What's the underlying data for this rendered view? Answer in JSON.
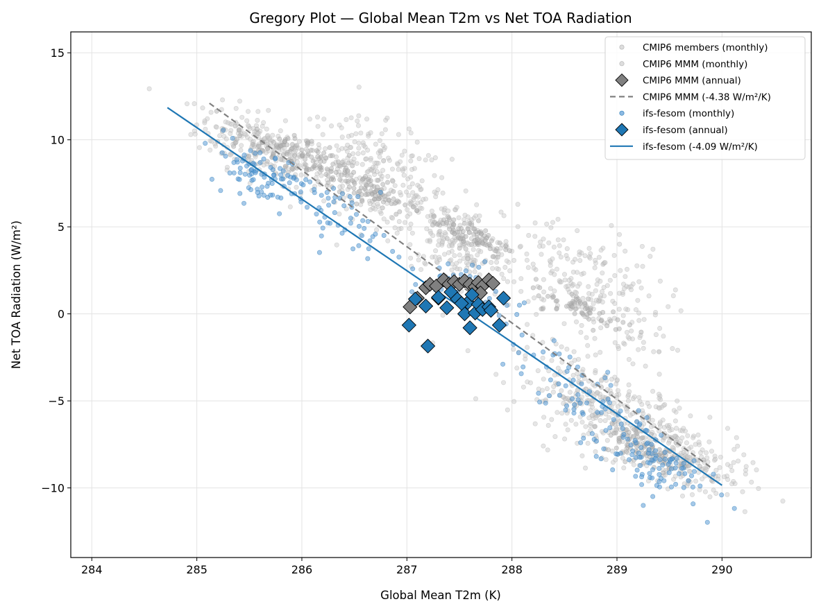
{
  "chart_data": {
    "type": "scatter",
    "title": "Gregory Plot — Global Mean T2m vs Net TOA Radiation",
    "xlabel": "Global Mean T2m (K)",
    "ylabel": "Net TOA Radiation (W/m²)",
    "xlim": [
      283.8,
      290.85
    ],
    "ylim": [
      -14.0,
      16.2
    ],
    "xticks": [
      284,
      285,
      286,
      287,
      288,
      289,
      290
    ],
    "xtick_labels": [
      "284",
      "285",
      "286",
      "287",
      "288",
      "289",
      "290"
    ],
    "yticks": [
      -10,
      -5,
      0,
      5,
      10,
      15
    ],
    "ytick_labels": [
      "−10",
      "−5",
      "0",
      "5",
      "10",
      "15"
    ],
    "grid": true,
    "legend_position": "top-right",
    "colors": {
      "cmip_gray": "#808080",
      "ifs_blue": "#1f77b4",
      "edge_black": "#000000"
    },
    "series": [
      {
        "name": "CMIP6 members (monthly)",
        "kind": "scatter-small",
        "color": "#c8c8c8",
        "clusters": [
          {
            "x_center": 285.6,
            "y_center": 9.6,
            "x_spread": 0.55,
            "y_spread": 1.6,
            "count": 230
          },
          {
            "x_center": 286.7,
            "y_center": 8.0,
            "x_spread": 0.65,
            "y_spread": 2.6,
            "count": 260
          },
          {
            "x_center": 287.5,
            "y_center": 4.0,
            "x_spread": 0.5,
            "y_spread": 2.0,
            "count": 220
          },
          {
            "x_center": 288.7,
            "y_center": 1.5,
            "x_spread": 0.7,
            "y_spread": 3.2,
            "count": 230
          },
          {
            "x_center": 288.9,
            "y_center": -5.5,
            "x_spread": 0.8,
            "y_spread": 2.2,
            "count": 330
          },
          {
            "x_center": 289.6,
            "y_center": -8.2,
            "x_spread": 0.6,
            "y_spread": 1.8,
            "count": 200
          }
        ]
      },
      {
        "name": "CMIP6 MMM (monthly)",
        "kind": "scatter-small",
        "color": "#b0b0b0",
        "clusters": [
          {
            "x_center": 285.9,
            "y_center": 9.2,
            "x_spread": 0.5,
            "y_spread": 1.0,
            "count": 110
          },
          {
            "x_center": 286.6,
            "y_center": 7.2,
            "x_spread": 0.4,
            "y_spread": 0.8,
            "count": 80
          },
          {
            "x_center": 287.6,
            "y_center": 4.6,
            "x_spread": 0.35,
            "y_spread": 0.8,
            "count": 70
          },
          {
            "x_center": 288.7,
            "y_center": 0.2,
            "x_spread": 0.45,
            "y_spread": 0.7,
            "count": 60
          },
          {
            "x_center": 289.3,
            "y_center": -7.8,
            "x_spread": 0.4,
            "y_spread": 1.0,
            "count": 90
          }
        ]
      },
      {
        "name": "CMIP6 MMM (annual)",
        "kind": "diamond",
        "color": "#808080",
        "points": [
          [
            287.03,
            0.4
          ],
          [
            287.1,
            0.9
          ],
          [
            287.18,
            1.5
          ],
          [
            287.22,
            1.7
          ],
          [
            287.28,
            1.6
          ],
          [
            287.35,
            1.95
          ],
          [
            287.4,
            1.7
          ],
          [
            287.45,
            1.85
          ],
          [
            287.5,
            1.7
          ],
          [
            287.55,
            1.9
          ],
          [
            287.6,
            1.7
          ],
          [
            287.65,
            1.55
          ],
          [
            287.68,
            1.8
          ],
          [
            287.72,
            1.6
          ],
          [
            287.78,
            1.95
          ],
          [
            287.82,
            1.75
          ],
          [
            287.3,
            0.9
          ],
          [
            287.7,
            1.2
          ]
        ]
      },
      {
        "name": "CMIP6 MMM (-4.38 W/m²/K)",
        "kind": "regression-dashed",
        "color": "#808080",
        "slope": -4.38,
        "x_range": [
          285.12,
          289.9
        ],
        "y_range": [
          12.1,
          -8.85
        ]
      },
      {
        "name": "ifs-fesom (monthly)",
        "kind": "scatter-small",
        "color": "#5b9bd5",
        "clusters": [
          {
            "x_center": 285.6,
            "y_center": 8.1,
            "x_spread": 0.45,
            "y_spread": 1.4,
            "count": 90
          },
          {
            "x_center": 286.4,
            "y_center": 5.5,
            "x_spread": 0.4,
            "y_spread": 1.5,
            "count": 50
          },
          {
            "x_center": 287.6,
            "y_center": 1.5,
            "x_spread": 0.5,
            "y_spread": 1.6,
            "count": 40
          },
          {
            "x_center": 288.6,
            "y_center": -4.5,
            "x_spread": 0.6,
            "y_spread": 2.0,
            "count": 70
          },
          {
            "x_center": 289.3,
            "y_center": -8.5,
            "x_spread": 0.45,
            "y_spread": 1.6,
            "count": 90
          }
        ]
      },
      {
        "name": "ifs-fesom (annual)",
        "kind": "diamond",
        "color": "#1f77b4",
        "points": [
          [
            287.02,
            -0.65
          ],
          [
            287.08,
            0.85
          ],
          [
            287.18,
            0.45
          ],
          [
            287.2,
            -1.85
          ],
          [
            287.3,
            0.95
          ],
          [
            287.38,
            0.35
          ],
          [
            287.42,
            1.25
          ],
          [
            287.48,
            0.85
          ],
          [
            287.55,
            0.0
          ],
          [
            287.58,
            0.65
          ],
          [
            287.6,
            -0.8
          ],
          [
            287.62,
            1.1
          ],
          [
            287.65,
            0.05
          ],
          [
            287.68,
            0.55
          ],
          [
            287.72,
            0.25
          ],
          [
            287.78,
            0.4
          ],
          [
            287.8,
            0.2
          ],
          [
            287.88,
            -0.65
          ],
          [
            287.92,
            0.9
          ],
          [
            287.52,
            0.6
          ]
        ]
      },
      {
        "name": "ifs-fesom (-4.09 W/m²/K)",
        "kind": "regression-solid",
        "color": "#1f77b4",
        "slope": -4.09,
        "x_range": [
          284.72,
          290.0
        ],
        "y_range": [
          11.85,
          -9.85
        ]
      }
    ],
    "legend_entries": [
      "CMIP6 members (monthly)",
      "CMIP6 MMM (monthly)",
      "CMIP6 MMM (annual)",
      "CMIP6 MMM (-4.38 W/m²/K)",
      "ifs-fesom (monthly)",
      "ifs-fesom (annual)",
      "ifs-fesom (-4.09 W/m²/K)"
    ]
  }
}
